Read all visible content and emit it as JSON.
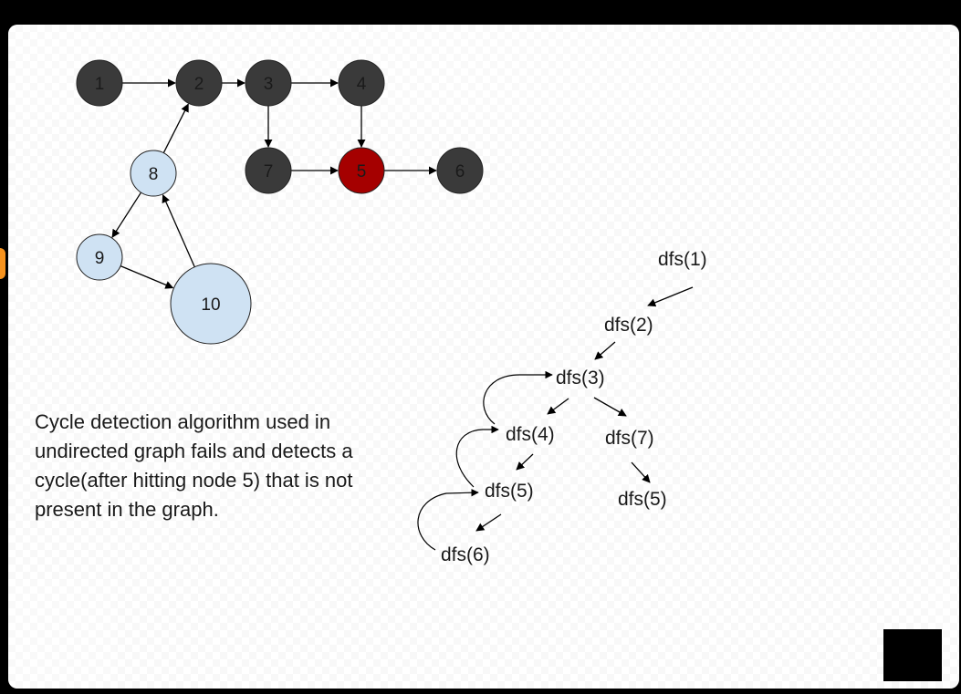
{
  "colors": {
    "node_dark": "#3a3a3a",
    "node_highlight": "#a50000",
    "node_light": "#cfe2f3",
    "edge": "#000000"
  },
  "nodes": [
    {
      "id": "1",
      "label": "1",
      "kind": "dark"
    },
    {
      "id": "2",
      "label": "2",
      "kind": "dark"
    },
    {
      "id": "3",
      "label": "3",
      "kind": "dark"
    },
    {
      "id": "4",
      "label": "4",
      "kind": "dark"
    },
    {
      "id": "7",
      "label": "7",
      "kind": "dark"
    },
    {
      "id": "5",
      "label": "5",
      "kind": "highlight"
    },
    {
      "id": "6",
      "label": "6",
      "kind": "dark"
    },
    {
      "id": "8",
      "label": "8",
      "kind": "light"
    },
    {
      "id": "9",
      "label": "9",
      "kind": "light"
    },
    {
      "id": "10",
      "label": "10",
      "kind": "light"
    }
  ],
  "edges": [
    {
      "from": "1",
      "to": "2"
    },
    {
      "from": "2",
      "to": "3"
    },
    {
      "from": "3",
      "to": "4"
    },
    {
      "from": "3",
      "to": "7"
    },
    {
      "from": "4",
      "to": "5"
    },
    {
      "from": "7",
      "to": "5"
    },
    {
      "from": "5",
      "to": "6"
    },
    {
      "from": "8",
      "to": "2"
    },
    {
      "from": "8",
      "to": "9"
    },
    {
      "from": "9",
      "to": "10"
    },
    {
      "from": "10",
      "to": "8"
    }
  ],
  "dfs_calls": [
    {
      "id": "c1",
      "label": "dfs(1)"
    },
    {
      "id": "c2",
      "label": "dfs(2)"
    },
    {
      "id": "c3",
      "label": "dfs(3)"
    },
    {
      "id": "c4",
      "label": "dfs(4)"
    },
    {
      "id": "c7",
      "label": "dfs(7)"
    },
    {
      "id": "c5a",
      "label": "dfs(5)"
    },
    {
      "id": "c5b",
      "label": "dfs(5)"
    },
    {
      "id": "c6",
      "label": "dfs(6)"
    }
  ],
  "caption": "Cycle detection algorithm used in undirected graph fails and detects a cycle(after hitting node 5) that is not present in the graph."
}
